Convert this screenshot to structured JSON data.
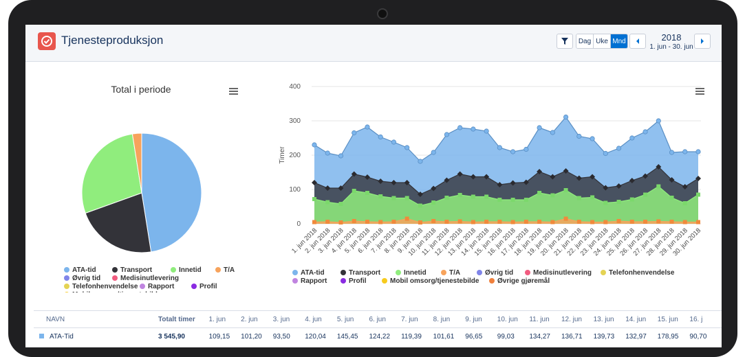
{
  "header": {
    "title": "Tjenesteproduksjon",
    "view_buttons": [
      "Dag",
      "Uke",
      "Mnd"
    ],
    "active_view": "Mnd",
    "year": "2018",
    "range": "1. jun - 30. jun"
  },
  "pie": {
    "title": "Total i periode",
    "legend": [
      {
        "name": "ATA-tid",
        "color": "#7cb5ec"
      },
      {
        "name": "Transport",
        "color": "#333339"
      },
      {
        "name": "Innetid",
        "color": "#90ed7d"
      },
      {
        "name": "T/A",
        "color": "#f7a35c"
      },
      {
        "name": "Øvrig tid",
        "color": "#8085e9"
      },
      {
        "name": "Medisinutlevering",
        "color": "#f15c80"
      },
      {
        "name": "Telefonhenvendelse",
        "color": "#e4d354"
      },
      {
        "name": "Rapport",
        "color": "#c084e0"
      },
      {
        "name": "Profil",
        "color": "#8a2be2"
      },
      {
        "name": "Mobil omsorg/tjenestebilde",
        "color": "#f7cb1e"
      },
      {
        "name": "Øvrige gjøremål",
        "color": "#f0803c"
      }
    ]
  },
  "area": {
    "ylabel": "Timer",
    "legend": [
      {
        "name": "ATA-tid",
        "color": "#7cb5ec"
      },
      {
        "name": "Transport",
        "color": "#333339"
      },
      {
        "name": "Innetid",
        "color": "#90ed7d"
      },
      {
        "name": "T/A",
        "color": "#f7a35c"
      },
      {
        "name": "Øvrig tid",
        "color": "#8085e9"
      },
      {
        "name": "Medisinutlevering",
        "color": "#f15c80"
      },
      {
        "name": "Telefonhenvendelse",
        "color": "#e4d354"
      },
      {
        "name": "Rapport",
        "color": "#c084e0"
      },
      {
        "name": "Profil",
        "color": "#8a2be2"
      },
      {
        "name": "Mobil omsorg/tjenestebilde",
        "color": "#f7cb1e"
      },
      {
        "name": "Øvrige gjøremål",
        "color": "#f0803c"
      }
    ]
  },
  "chart_data": [
    {
      "type": "pie",
      "title": "Total i periode",
      "slices": [
        {
          "name": "ATA-tid",
          "value": 47.5,
          "color": "#7cb5ec"
        },
        {
          "name": "Transport",
          "value": 22.0,
          "color": "#333339"
        },
        {
          "name": "Innetid",
          "value": 28.0,
          "color": "#90ed7d"
        },
        {
          "name": "T/A",
          "value": 2.5,
          "color": "#f7a35c"
        }
      ]
    },
    {
      "type": "area",
      "ylabel": "Timer",
      "ylim": [
        0,
        400
      ],
      "yticks": [
        0,
        100,
        200,
        300,
        400
      ],
      "categories": [
        "1. jun 2018",
        "2. jun 2018",
        "3. jun 2018",
        "4. jun 2018",
        "5. jun 2018",
        "6. jun 2018",
        "7. jun 2018",
        "8. jun 2018",
        "9. jun 2018",
        "10. jun 2018",
        "11. jun 2018",
        "12. jun 2018",
        "13. jun 2018",
        "14. jun 2018",
        "15. jun 2018",
        "16. jun 2018",
        "17. jun 2018",
        "18. jun 2018",
        "19. jun 2018",
        "20. jun 2018",
        "21. jun 2018",
        "22. jun 2018",
        "23. jun 2018",
        "24. jun 2018",
        "25. jun 2018",
        "26. jun 2018",
        "27. jun 2018",
        "28. jun 2018",
        "29. jun 2018",
        "30. jun 2018"
      ],
      "series": [
        {
          "name": "ATA-tid",
          "color": "#7cb5ec",
          "values": [
            230,
            206,
            198,
            265,
            282,
            253,
            238,
            222,
            182,
            208,
            260,
            280,
            276,
            270,
            222,
            210,
            217,
            280,
            266,
            311,
            255,
            248,
            205,
            220,
            250,
            268,
            300,
            208,
            210,
            210
          ]
        },
        {
          "name": "Transport",
          "color": "#333339",
          "values": [
            120,
            104,
            104,
            145,
            136,
            124,
            120,
            120,
            86,
            103,
            127,
            145,
            137,
            137,
            114,
            119,
            121,
            152,
            137,
            154,
            133,
            137,
            105,
            110,
            126,
            139,
            166,
            128,
            108,
            132
          ]
        },
        {
          "name": "Innetid",
          "color": "#90ed7d",
          "values": [
            72,
            63,
            58,
            96,
            90,
            80,
            75,
            75,
            53,
            62,
            76,
            84,
            79,
            79,
            70,
            70,
            70,
            90,
            83,
            98,
            75,
            77,
            61,
            64,
            71,
            85,
            109,
            76,
            60,
            85
          ]
        },
        {
          "name": "T/A",
          "color": "#f7a35c",
          "values": [
            5,
            6,
            4,
            8,
            6,
            5,
            6,
            15,
            4,
            8,
            6,
            7,
            5,
            6,
            6,
            5,
            6,
            6,
            5,
            15,
            6,
            5,
            5,
            8,
            6,
            6,
            7,
            6,
            5,
            5
          ]
        }
      ]
    }
  ],
  "table": {
    "col_name": "NAVN",
    "col_total": "Totalt timer",
    "day_headers": [
      "1. jun",
      "2. jun",
      "3. jun",
      "4. jun",
      "5. jun",
      "6. jun",
      "7. jun",
      "8. jun",
      "9. jun",
      "10. jun",
      "11. jun",
      "12. jun",
      "13. jun",
      "14. jun",
      "15. jun",
      "16. j"
    ],
    "rows": [
      {
        "name": "ATA-Tid",
        "color": "#7cb5ec",
        "total": "3 545,90",
        "values": [
          "109,15",
          "101,20",
          "93,50",
          "120,04",
          "145,45",
          "124,22",
          "119,39",
          "101,61",
          "96,65",
          "99,03",
          "134,27",
          "136,71",
          "139,73",
          "132,97",
          "178,95",
          "90,70"
        ]
      }
    ]
  }
}
